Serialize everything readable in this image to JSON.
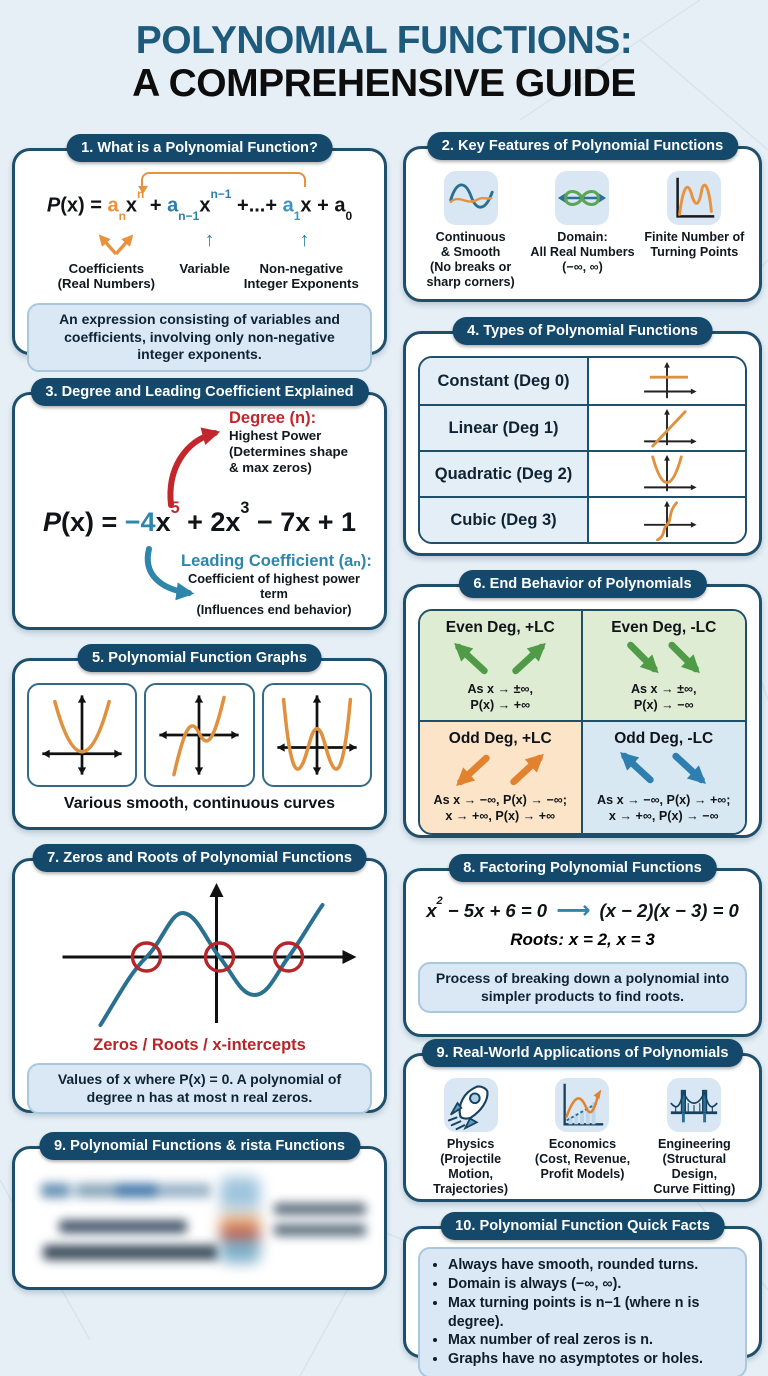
{
  "page": {
    "title_line1": "POLYNOMIAL FUNCTIONS:",
    "title_line2": "A COMPREHENSIVE GUIDE",
    "icons": {
      "up_arrow": "↑",
      "factoring_arrow": "⟶"
    },
    "colors": {
      "background": "#e6eff6",
      "panel_border": "#1e4f6b",
      "header_pill": "#14496b",
      "orange_accent": "#e8923d",
      "teal_accent": "#2d7fa8",
      "blue_accent": "#2e86ab",
      "red_accent": "#c1272d",
      "green_accent": "#4f9b48",
      "note_box_bg": "#d9e8f4"
    }
  },
  "s1": {
    "title": "1. What is a Polynomial Function?",
    "formula": [
      {
        "t": "P",
        "i": 1
      },
      {
        "t": "(x) = "
      },
      {
        "t": "a",
        "c": "#e8923d"
      },
      {
        "t": "n",
        "sub": 1,
        "c": "#e8923d"
      },
      {
        "t": "x"
      },
      {
        "t": "n",
        "sup": 1,
        "c": "#e8923d"
      },
      {
        "t": " + "
      },
      {
        "t": "a",
        "c": "#2d7fa8"
      },
      {
        "t": "n−1",
        "sub": 1,
        "c": "#2d7fa8"
      },
      {
        "t": "x"
      },
      {
        "t": "n−1",
        "sup": 1,
        "c": "#2d7fa8"
      },
      {
        "t": " +...+ "
      },
      {
        "t": "a",
        "c": "#3f93c4"
      },
      {
        "t": "1",
        "sub": 1,
        "c": "#3f93c4"
      },
      {
        "t": "x + a"
      },
      {
        "t": "0",
        "sub": 1
      }
    ],
    "label_coefficients": "Coefficients\n(Real Numbers)",
    "label_variable": "Variable",
    "label_exponents": "Non-negative\nInteger Exponents",
    "note": "An expression consisting of variables and coefficients, involving only non-negative integer exponents."
  },
  "s2": {
    "title": "2. Key Features of Polynomial Functions",
    "features": [
      {
        "icon": "continuous-smooth-wave-icon",
        "label": "Continuous\n& Smooth\n(No breaks or\nsharp corners)"
      },
      {
        "icon": "infinity-domain-icon",
        "label": "Domain:\nAll Real Numbers\n(−∞, ∞)"
      },
      {
        "icon": "turning-points-curve-icon",
        "label": "Finite Number of\nTurning Points"
      }
    ]
  },
  "s3": {
    "title": "3. Degree and Leading Coefficient Explained",
    "degree_label": "Degree (n):",
    "degree_desc": "Highest Power\n(Determines shape\n& max zeros)",
    "formula": [
      {
        "t": "P",
        "i": 1
      },
      {
        "t": "(x) = "
      },
      {
        "t": "−4",
        "c": "#2e86ab"
      },
      {
        "t": "x"
      },
      {
        "t": "5",
        "sup": 1,
        "c": "#c1272d"
      },
      {
        "t": " + 2x"
      },
      {
        "t": "3",
        "sup": 1
      },
      {
        "t": " − 7x + 1"
      }
    ],
    "lc_label": "Leading Coefficient (aₙ):",
    "lc_desc": "Coefficient of highest power term\n(Influences end behavior)"
  },
  "s4": {
    "title": "4. Types of Polynomial Functions",
    "rows": [
      {
        "label": "Constant (Deg 0)",
        "graph": "constant-graph-icon"
      },
      {
        "label": "Linear (Deg 1)",
        "graph": "linear-graph-icon"
      },
      {
        "label": "Quadratic (Deg 2)",
        "graph": "quadratic-graph-icon"
      },
      {
        "label": "Cubic (Deg 3)",
        "graph": "cubic-graph-icon"
      }
    ]
  },
  "s5": {
    "title": "5. Polynomial Function Graphs",
    "caption": "Various smooth, continuous curves"
  },
  "s6": {
    "title": "6. End Behavior of Polynomials",
    "cells": [
      {
        "heading": "Even Deg, +LC",
        "line1": "As x → ±∞,",
        "line2": "P(x) → +∞"
      },
      {
        "heading": "Even Deg, -LC",
        "line1": "As x → ±∞,",
        "line2": "P(x) → −∞"
      },
      {
        "heading": "Odd Deg, +LC",
        "line1": "As x → −∞, P(x) → −∞;",
        "line2": "x → +∞, P(x) → +∞"
      },
      {
        "heading": "Odd Deg, -LC",
        "line1": "As x → −∞, P(x) → +∞;",
        "line2": "x → +∞, P(x) → −∞"
      }
    ]
  },
  "s7": {
    "title": "7. Zeros and Roots of Polynomial Functions",
    "caption": "Zeros / Roots / x-intercepts",
    "note": "Values of x where P(x) = 0. A polynomial of degree n has at most n real zeros."
  },
  "s8": {
    "title": "8. Factoring Polynomial Functions",
    "equation_left": [
      {
        "t": "x"
      },
      {
        "t": "2",
        "sup": 1
      },
      {
        "t": " − 5x + 6 = 0"
      }
    ],
    "equation_right": [
      {
        "t": "(x − 2)(x − 3) = 0"
      }
    ],
    "roots": "Roots: x = 2, x = 3",
    "note": "Process of breaking down a polynomial into simpler products to find roots."
  },
  "s9_blurred": {
    "title": "9. Polynomial Functions & rista Functions",
    "content_blurred": true
  },
  "s9_apps": {
    "title": "9. Real-World Applications of Polynomials",
    "apps": [
      {
        "icon": "rocket-icon",
        "label": "Physics\n(Projectile Motion,\nTrajectories)"
      },
      {
        "icon": "economics-chart-icon",
        "label": "Economics\n(Cost, Revenue,\nProfit Models)"
      },
      {
        "icon": "bridge-icon",
        "label": "Engineering\n(Structural Design,\nCurve Fitting)"
      }
    ]
  },
  "s10": {
    "title": "10. Polynomial Function Quick Facts",
    "bullets": [
      "Always have smooth, rounded turns.",
      "Domain is always (−∞, ∞).",
      "Max turning points is n−1 (where n is degree).",
      "Max number of real zeros is n.",
      "Graphs have no asymptotes or holes."
    ]
  }
}
